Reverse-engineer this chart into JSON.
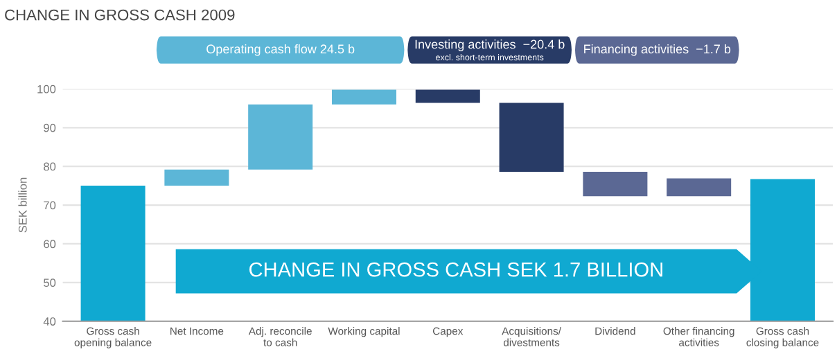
{
  "chart_data": {
    "type": "bar",
    "title": "CHANGE IN GROSS CASH 2009",
    "ylabel": "SEK billion",
    "categories": [
      "Gross cash\nopening balance",
      "Net Income",
      "Adj. reconcile\nto cash",
      "Working capital",
      "Capex",
      "Acquisitions/\ndivestments",
      "Dividend",
      "Other financing\nactivities",
      "Gross cash\nclosing balance"
    ],
    "values": [
      75,
      4.2,
      16.8,
      3.8,
      -3.4,
      -17.8,
      -6.3,
      4.6,
      76.7
    ],
    "base": [
      null,
      75,
      79.2,
      96,
      99.8,
      96.4,
      78.6,
      72.3,
      null
    ],
    "colors": [
      "#10a9d1",
      "#5cb6d7",
      "#5cb6d7",
      "#5cb6d7",
      "#283b66",
      "#283b66",
      "#5b6894",
      "#5b6894",
      "#10a9d1"
    ],
    "ylim": [
      40,
      100
    ],
    "yticks": [
      40,
      50,
      60,
      70,
      80,
      90,
      100
    ],
    "grid": "y",
    "annotations": [
      "Operating cash flow 24.5 b",
      "Investing activities  −20.4 b\nexcl. short-term investments",
      "Financing activities  −1.7 b",
      "CHANGE IN GROSS CASH SEK 1.7 BILLION"
    ]
  }
}
